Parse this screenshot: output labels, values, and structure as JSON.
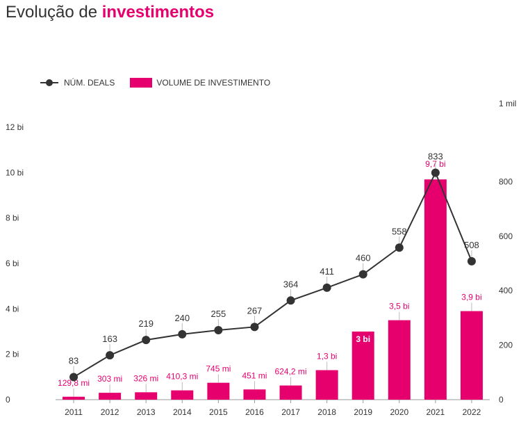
{
  "title": {
    "prefix": "Evolução de ",
    "accent": "investimentos"
  },
  "colors": {
    "accent": "#e6006e",
    "line": "#333333",
    "text": "#333333",
    "axis": "#999999"
  },
  "legend": {
    "line_label": "NÚM. DEALS",
    "bar_label": "VOLUME DE INVESTIMENTO"
  },
  "chart_data": {
    "type": "bar",
    "categories": [
      "2011",
      "2012",
      "2013",
      "2014",
      "2015",
      "2016",
      "2017",
      "2018",
      "2019",
      "2020",
      "2021",
      "2022"
    ],
    "series": [
      {
        "name": "VOLUME DE INVESTIMENTO",
        "type": "bar",
        "axis": "left",
        "values": [
          0.1298,
          0.303,
          0.326,
          0.4103,
          0.745,
          0.451,
          0.6242,
          1.3,
          3,
          3.5,
          9.7,
          3.9
        ],
        "labels": [
          "129,8 mi",
          "303 mi",
          "326 mi",
          "410,3 mi",
          "745 mi",
          "451 mi",
          "624,2 mi",
          "1,3 bi",
          "3 bi",
          "3,5 bi",
          "9,7 bi",
          "3,9 bi"
        ]
      },
      {
        "name": "NÚM. DEALS",
        "type": "line",
        "axis": "right",
        "values": [
          83,
          163,
          219,
          240,
          255,
          267,
          364,
          411,
          460,
          558,
          833,
          508
        ],
        "labels": [
          "83",
          "163",
          "219",
          "240",
          "255",
          "267",
          "364",
          "411",
          "460",
          "558",
          "833",
          "508"
        ]
      }
    ],
    "left_axis": {
      "ylim": [
        0,
        12
      ],
      "ticks": [
        0,
        2,
        4,
        6,
        8,
        10,
        12
      ],
      "tick_labels": [
        "0",
        "2 bi",
        "4 bi",
        "6 bi",
        "8 bi",
        "10 bi",
        "12 bi"
      ]
    },
    "right_axis": {
      "ylim": [
        0,
        1000
      ],
      "ticks": [
        0,
        200,
        400,
        600,
        800,
        1000
      ],
      "tick_labels": [
        "0",
        "200",
        "400",
        "600",
        "800",
        "1 mil"
      ]
    },
    "legend_position": "top-left",
    "grid": false
  }
}
